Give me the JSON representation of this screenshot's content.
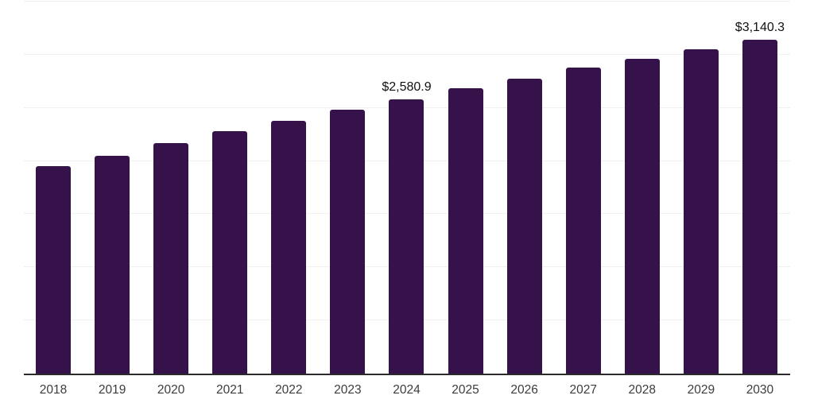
{
  "chart_data": {
    "type": "bar",
    "title": "",
    "xlabel": "",
    "ylabel": "",
    "categories": [
      "2018",
      "2019",
      "2020",
      "2021",
      "2022",
      "2023",
      "2024",
      "2025",
      "2026",
      "2027",
      "2028",
      "2029",
      "2030"
    ],
    "values": [
      1950,
      2053,
      2168,
      2281,
      2378,
      2483,
      2580.9,
      2685,
      2775,
      2880,
      2965,
      3051,
      3140.3
    ],
    "point_labels": [
      "",
      "",
      "",
      "",
      "",
      "",
      "$2,580.9",
      "",
      "",
      "",
      "",
      "",
      "$3,140.3"
    ],
    "labeled_points_note": "only 2024 and 2030 carry visible data labels; other values estimated from gridlines",
    "ylim": [
      0,
      3500
    ],
    "gridline_step": 500,
    "y_tick_labels_visible": false,
    "grid": true,
    "legend": false,
    "colors": {
      "bar": "#35124a",
      "gridline": "#f0f0f0",
      "axis_line": "#2b2b2b",
      "value_label_text": "#111111",
      "tick_label_text": "#3c3c3c",
      "background": "#ffffff"
    }
  }
}
